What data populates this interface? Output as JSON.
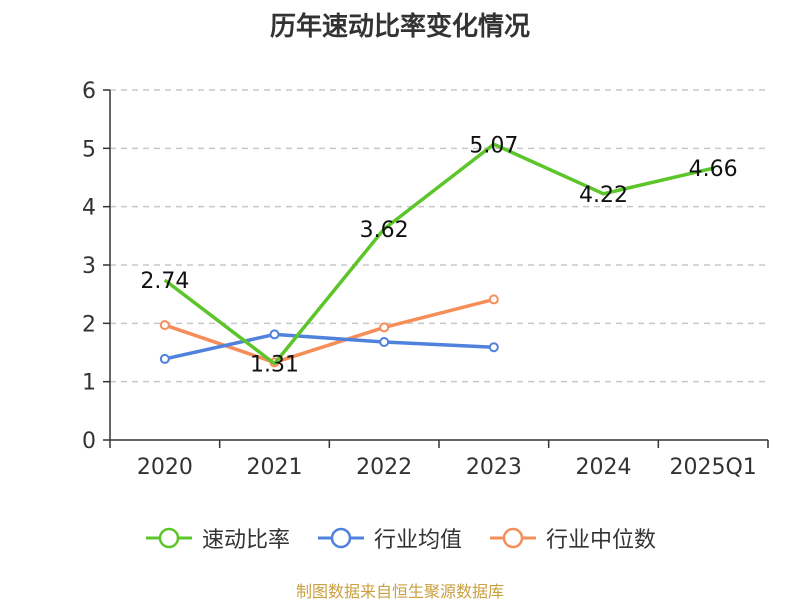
{
  "chart_data": {
    "type": "line",
    "title": "历年速动比率变化情况",
    "categories": [
      "2020",
      "2021",
      "2022",
      "2023",
      "2024",
      "2025Q1"
    ],
    "ylim": [
      0,
      6
    ],
    "yticks": [
      "0",
      "1",
      "2",
      "3",
      "4",
      "5",
      "6"
    ],
    "grid": true,
    "legend_position": "bottom",
    "series": [
      {
        "name": "速动比率",
        "color": "#5cc52a",
        "values": [
          2.74,
          1.31,
          3.62,
          5.07,
          4.22,
          4.66
        ],
        "labels": [
          "2.74",
          "1.31",
          "3.62",
          "5.07",
          "4.22",
          "4.66"
        ],
        "show_markers": false,
        "show_labels": true
      },
      {
        "name": "行业均值",
        "color": "#4f81dd",
        "values": [
          1.39,
          1.81,
          1.68,
          1.59,
          null,
          null
        ],
        "show_markers": true,
        "show_labels": false
      },
      {
        "name": "行业中位数",
        "color": "#f68e5a",
        "values": [
          1.97,
          1.33,
          1.93,
          2.41,
          null,
          null
        ],
        "show_markers": true,
        "show_labels": false
      }
    ]
  },
  "footer": {
    "source": "制图数据来自恒生聚源数据库"
  }
}
